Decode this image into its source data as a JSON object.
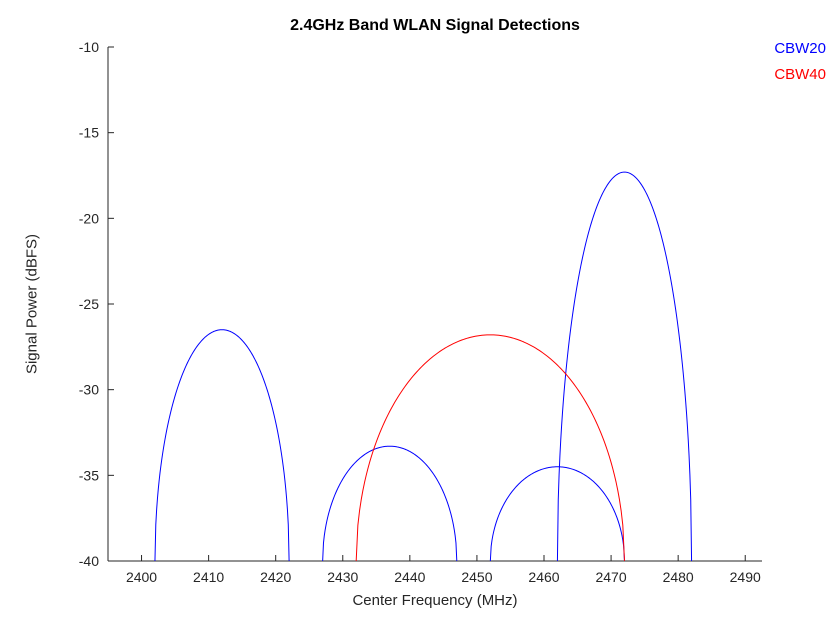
{
  "figure": {
    "title": "2.4GHz Band WLAN Signal Detections",
    "xlabel": "Center Frequency (MHz)",
    "ylabel": "Signal Power (dBFS)",
    "background_color": "#ffffff",
    "axis_color": "#262626"
  },
  "chart_data": {
    "type": "line",
    "title": "2.4GHz Band WLAN Signal Detections",
    "xlabel": "Center Frequency (MHz)",
    "ylabel": "Signal Power (dBFS)",
    "xlim": [
      2395,
      2492.5
    ],
    "ylim": [
      -40,
      -10
    ],
    "xticks": [
      2400,
      2410,
      2420,
      2430,
      2440,
      2450,
      2460,
      2470,
      2480,
      2490
    ],
    "yticks": [
      -40,
      -35,
      -30,
      -25,
      -20,
      -15,
      -10
    ],
    "grid": false,
    "legend_position": "top-right",
    "noise_floor_dbfs": -40,
    "series": [
      {
        "name": "CBW20",
        "color": "#0000FF",
        "shape": "half-ellipse arcs rising from the noise floor",
        "signals": [
          {
            "center_mhz": 2412,
            "bandwidth_mhz": 20,
            "peak_dbfs": -26.5
          },
          {
            "center_mhz": 2437,
            "bandwidth_mhz": 20,
            "peak_dbfs": -33.3
          },
          {
            "center_mhz": 2462,
            "bandwidth_mhz": 20,
            "peak_dbfs": -34.5
          },
          {
            "center_mhz": 2472,
            "bandwidth_mhz": 20,
            "peak_dbfs": -17.3
          }
        ]
      },
      {
        "name": "CBW40",
        "color": "#FF0000",
        "shape": "half-ellipse arc rising from the noise floor",
        "signals": [
          {
            "center_mhz": 2452,
            "bandwidth_mhz": 40,
            "peak_dbfs": -26.8
          }
        ]
      }
    ]
  }
}
